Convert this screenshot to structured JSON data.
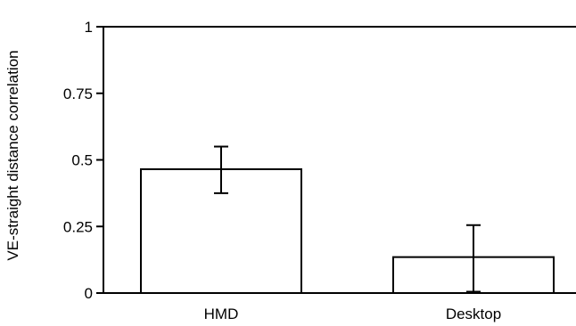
{
  "chart_data": {
    "type": "bar",
    "title": "",
    "xlabel": "",
    "ylabel": "VE-straight distance correlation",
    "categories": [
      "HMD",
      "Desktop"
    ],
    "values": [
      0.465,
      0.135
    ],
    "error_low": [
      0.375,
      0.005
    ],
    "error_high": [
      0.55,
      0.255
    ],
    "ylim": [
      0,
      1
    ],
    "yticks": [
      0,
      0.25,
      0.5,
      0.75,
      1
    ],
    "ytick_labels": [
      "0",
      "0.25",
      "0.5",
      "0.75",
      "1"
    ],
    "grid": false,
    "legend": "none",
    "colors": {
      "bar_fill": "#ffffff",
      "stroke": "#000000"
    }
  }
}
